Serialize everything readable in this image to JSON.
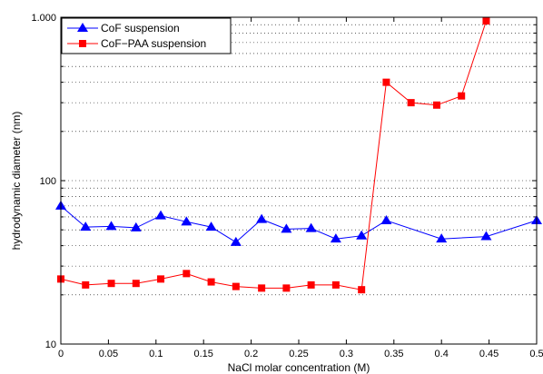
{
  "chart_data": {
    "type": "line",
    "xlabel": "NaCl molar concentration (M)",
    "ylabel": "hydrodynamic diameter (nm)",
    "xlim": [
      0,
      0.5
    ],
    "ylim": [
      10,
      1000
    ],
    "yscale": "log",
    "grid": "y dotted (major and minor)",
    "legend_position": "top-left",
    "x_ticks": [
      "0",
      "0.05",
      "0.1",
      "0.15",
      "0.2",
      "0.25",
      "0.3",
      "0.35",
      "0.4",
      "0.45",
      "0.5"
    ],
    "y_ticks": [
      "10",
      "100",
      "1.000"
    ],
    "series": [
      {
        "name": "CoF suspension",
        "color": "#0000ff",
        "marker": "triangle",
        "points": [
          [
            0,
            70
          ],
          [
            0.026,
            52
          ],
          [
            0.053,
            52.5
          ],
          [
            0.079,
            51.5
          ],
          [
            0.105,
            61
          ],
          [
            0.132,
            56
          ],
          [
            0.158,
            52
          ],
          [
            0.184,
            42
          ],
          [
            0.211,
            58
          ],
          [
            0.237,
            50.5
          ],
          [
            0.263,
            51
          ],
          [
            0.289,
            44
          ],
          [
            0.316,
            46
          ],
          [
            0.342,
            57
          ],
          [
            0.4,
            44
          ],
          [
            0.447,
            45.5
          ],
          [
            0.5,
            57
          ]
        ]
      },
      {
        "name": "CoF−PAA suspension",
        "color": "#ff0000",
        "marker": "square",
        "points": [
          [
            0,
            25
          ],
          [
            0.026,
            23
          ],
          [
            0.053,
            23.5
          ],
          [
            0.079,
            23.5
          ],
          [
            0.105,
            25
          ],
          [
            0.132,
            27
          ],
          [
            0.158,
            24
          ],
          [
            0.184,
            22.5
          ],
          [
            0.211,
            22
          ],
          [
            0.237,
            22
          ],
          [
            0.263,
            23
          ],
          [
            0.289,
            23
          ],
          [
            0.316,
            21.5
          ],
          [
            0.342,
            400
          ],
          [
            0.368,
            300
          ],
          [
            0.395,
            290
          ],
          [
            0.421,
            330
          ],
          [
            0.447,
            950
          ]
        ]
      }
    ]
  }
}
